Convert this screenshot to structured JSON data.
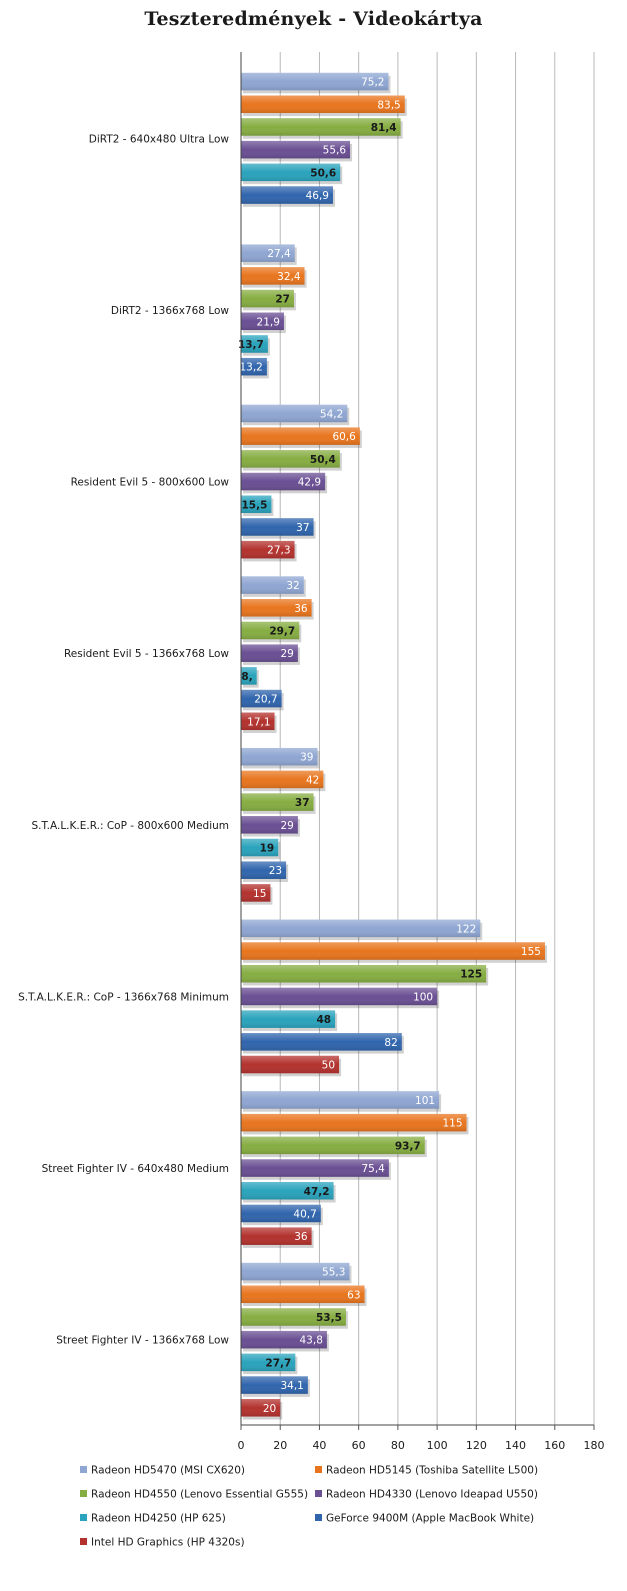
{
  "chart_data": {
    "type": "bar",
    "orientation": "horizontal",
    "title": "Teszteredmények - Videokártya",
    "xlim": [
      0,
      180
    ],
    "x_ticks": [
      "0",
      "20",
      "40",
      "60",
      "80",
      "100",
      "120",
      "140",
      "160",
      "180"
    ],
    "grid": "vertical",
    "legend_position": "bottom",
    "categories": [
      "DiRT2 - 640x480 Ultra Low",
      "DiRT2 - 1366x768 Low",
      "Resident Evil 5 - 800x600 Low",
      "Resident Evil 5 - 1366x768 Low",
      "S.T.A.L.K.E.R.:  CoP - 800x600 Medium",
      "S.T.A.L.K.E.R.:  CoP - 1366x768 Minimum",
      "Street Fighter IV - 640x480 Medium",
      "Street Fighter IV - 1366x768 Low"
    ],
    "series": [
      {
        "name": "Radeon HD5470 (MSI CX620)",
        "color": "#8fa6d2",
        "label_color": "#ffffff",
        "values": [
          75.2,
          27.4,
          54.2,
          32,
          39,
          122,
          101,
          55.3
        ],
        "labels": [
          "75,2",
          "27,4",
          "54,2",
          "32",
          "39",
          "122",
          "101",
          "55,3"
        ]
      },
      {
        "name": "Radeon HD5145 (Toshiba Satellite L500)",
        "color": "#e8751e",
        "label_color": "#ffffff",
        "values": [
          83.5,
          32.4,
          60.6,
          36,
          42,
          155,
          115,
          63
        ],
        "labels": [
          "83,5",
          "32,4",
          "60,6",
          "36",
          "42",
          "155",
          "115",
          "63"
        ]
      },
      {
        "name": "Radeon HD4550 (Lenovo Essential  G555)",
        "color": "#86ad42",
        "label_color": "#1a1a1a",
        "values": [
          81.4,
          27,
          50.4,
          29.7,
          37,
          125,
          93.7,
          53.5
        ],
        "labels": [
          "81,4",
          "27",
          "50,4",
          "29,7",
          "37",
          "125",
          "93,7",
          "53,5"
        ]
      },
      {
        "name": "Radeon HD4330 (Lenovo Ideapad U550)",
        "color": "#6a4f93",
        "label_color": "#ffffff",
        "values": [
          55.6,
          21.9,
          42.9,
          29,
          29,
          100,
          75.4,
          43.8
        ],
        "labels": [
          "55,6",
          "21,9",
          "42,9",
          "29",
          "29",
          "100",
          "75,4",
          "43,8"
        ]
      },
      {
        "name": "Radeon HD4250 (HP 625)",
        "color": "#2aa3bc",
        "label_color": "#1a1a1a",
        "values": [
          50.6,
          13.7,
          15.5,
          8,
          19,
          48,
          47.2,
          27.7
        ],
        "labels": [
          "50,6",
          "13,7",
          "15,5",
          "8,",
          "19",
          "48",
          "47,2",
          "27,7"
        ]
      },
      {
        "name": "GeForce 9400M (Apple MacBook White)",
        "color": "#3065ad",
        "label_color": "#ffffff",
        "values": [
          46.9,
          13.2,
          37,
          20.7,
          23,
          82,
          40.7,
          34.1
        ],
        "labels": [
          "46,9",
          "13,2",
          "37",
          "20,7",
          "23",
          "82",
          "40,7",
          "34,1"
        ]
      },
      {
        "name": "Intel HD Graphics (HP 4320s)",
        "color": "#b3322e",
        "label_color": "#ffffff",
        "values": [
          null,
          null,
          27.3,
          17.1,
          15,
          50,
          36,
          20
        ],
        "labels": [
          "",
          "",
          "27,3",
          "17,1",
          "15",
          "50",
          "36",
          "20"
        ]
      }
    ]
  }
}
